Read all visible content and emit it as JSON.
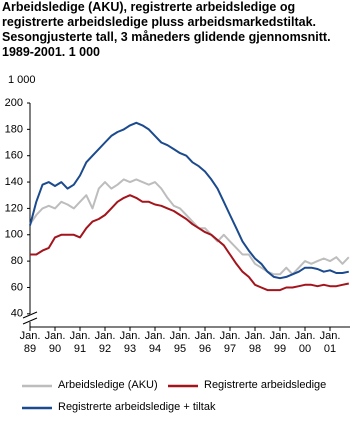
{
  "chart_data": {
    "type": "line",
    "title": "Arbeidsledige (AKU), registrerte arbeidsledige og registrerte arbeidsledige pluss arbeidsmarkedstiltak. Sesongjusterte tall, 3 måneders glidende gjennomsnitt. 1989-2001. 1 000",
    "y_label": "1 000",
    "x": [
      1989,
      1989.25,
      1989.5,
      1989.75,
      1990,
      1990.25,
      1990.5,
      1990.75,
      1991,
      1991.25,
      1991.5,
      1991.75,
      1992,
      1992.25,
      1992.5,
      1992.75,
      1993,
      1993.25,
      1993.5,
      1993.75,
      1994,
      1994.25,
      1994.5,
      1994.75,
      1995,
      1995.25,
      1995.5,
      1995.75,
      1996,
      1996.25,
      1996.5,
      1996.75,
      1997,
      1997.25,
      1997.5,
      1997.75,
      1998,
      1998.25,
      1998.5,
      1998.75,
      1999,
      1999.25,
      1999.5,
      1999.75,
      2000,
      2000.25,
      2000.5,
      2000.75,
      2001,
      2001.25,
      2001.5,
      2001.75
    ],
    "series": [
      {
        "name": "Arbeidsledige (AKU)",
        "color": "#bdbdbd",
        "values": [
          108,
          115,
          120,
          122,
          120,
          125,
          123,
          120,
          125,
          130,
          120,
          135,
          140,
          135,
          138,
          142,
          140,
          142,
          140,
          138,
          140,
          135,
          128,
          122,
          120,
          115,
          110,
          105,
          105,
          100,
          95,
          100,
          95,
          90,
          85,
          85,
          78,
          75,
          72,
          70,
          70,
          75,
          70,
          75,
          80,
          78,
          80,
          82,
          80,
          83,
          78,
          83
        ]
      },
      {
        "name": "Registrerte arbeidsledige",
        "color": "#a3141c",
        "values": [
          85,
          85,
          88,
          90,
          98,
          100,
          100,
          100,
          98,
          105,
          110,
          112,
          115,
          120,
          125,
          128,
          130,
          128,
          125,
          125,
          123,
          122,
          120,
          118,
          115,
          112,
          108,
          105,
          102,
          100,
          96,
          92,
          85,
          78,
          72,
          68,
          62,
          60,
          58,
          58,
          58,
          60,
          60,
          61,
          62,
          62,
          61,
          62,
          61,
          61,
          62,
          63
        ]
      },
      {
        "name": "Registrerte arbeidsledige + tiltak",
        "color": "#1b4a8f",
        "values": [
          107,
          125,
          138,
          140,
          137,
          140,
          135,
          138,
          145,
          155,
          160,
          165,
          170,
          175,
          178,
          180,
          183,
          185,
          183,
          180,
          175,
          170,
          168,
          165,
          162,
          160,
          155,
          152,
          148,
          142,
          135,
          125,
          115,
          105,
          95,
          88,
          82,
          78,
          72,
          68,
          67,
          68,
          70,
          72,
          75,
          75,
          74,
          72,
          73,
          71,
          71,
          72
        ]
      }
    ],
    "xlim": [
      1989,
      2001.8
    ],
    "xticks": [
      {
        "value": 1989,
        "label": "Jan. 89"
      },
      {
        "value": 1990,
        "label": "Jan. 90"
      },
      {
        "value": 1991,
        "label": "Jan. 91"
      },
      {
        "value": 1992,
        "label": "Jan. 92"
      },
      {
        "value": 1993,
        "label": "Jan. 93"
      },
      {
        "value": 1994,
        "label": "Jan. 94"
      },
      {
        "value": 1995,
        "label": "Jan. 95"
      },
      {
        "value": 1996,
        "label": "Jan. 96"
      },
      {
        "value": 1997,
        "label": "Jan. 97"
      },
      {
        "value": 1998,
        "label": "Jan. 98"
      },
      {
        "value": 1999,
        "label": "Jan. 99"
      },
      {
        "value": 2000,
        "label": "Jan. 00"
      },
      {
        "value": 2001,
        "label": "Jan. 01"
      }
    ],
    "ylim": [
      30,
      200
    ],
    "yticks": [
      40,
      60,
      80,
      100,
      120,
      140,
      160,
      180,
      200
    ],
    "grid": false
  }
}
